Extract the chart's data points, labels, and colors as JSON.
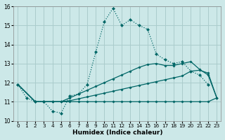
{
  "xlabel": "Humidex (Indice chaleur)",
  "background_color": "#cce8e8",
  "grid_color": "#aacccc",
  "line_color": "#006666",
  "xlim": [
    -0.5,
    23.5
  ],
  "ylim": [
    10,
    16
  ],
  "xticks": [
    0,
    1,
    2,
    3,
    4,
    5,
    6,
    7,
    8,
    9,
    10,
    11,
    12,
    13,
    14,
    15,
    16,
    17,
    18,
    19,
    20,
    21,
    22,
    23
  ],
  "yticks": [
    10,
    11,
    12,
    13,
    14,
    15,
    16
  ],
  "dotted_x": [
    0,
    1,
    2,
    3,
    4,
    5,
    6,
    7,
    8,
    9,
    10,
    11,
    12,
    13,
    14,
    15,
    16,
    17,
    18,
    19,
    20,
    21,
    22
  ],
  "dotted_y": [
    11.9,
    11.2,
    11.0,
    11.0,
    10.5,
    10.4,
    11.3,
    11.4,
    11.9,
    13.6,
    15.2,
    15.9,
    15.0,
    15.3,
    15.0,
    14.8,
    13.5,
    13.2,
    13.0,
    13.1,
    12.6,
    12.4,
    11.9
  ],
  "flat_x": [
    0,
    2,
    3,
    4,
    5,
    6,
    7,
    8,
    9,
    10,
    11,
    12,
    13,
    14,
    15,
    16,
    17,
    18,
    19,
    20,
    21,
    22,
    23
  ],
  "flat_y": [
    11.9,
    11.0,
    11.0,
    11.0,
    11.0,
    11.0,
    11.0,
    11.0,
    11.0,
    11.0,
    11.0,
    11.0,
    11.0,
    11.0,
    11.0,
    11.0,
    11.0,
    11.0,
    11.0,
    11.0,
    11.0,
    11.0,
    11.2
  ],
  "mid_x": [
    0,
    2,
    3,
    4,
    5,
    6,
    7,
    8,
    9,
    10,
    11,
    12,
    13,
    14,
    15,
    16,
    17,
    18,
    19,
    20,
    21,
    22,
    23
  ],
  "mid_y": [
    11.9,
    11.0,
    11.0,
    11.0,
    11.0,
    11.05,
    11.15,
    11.25,
    11.35,
    11.45,
    11.55,
    11.65,
    11.75,
    11.85,
    11.95,
    12.05,
    12.15,
    12.25,
    12.35,
    12.6,
    12.65,
    12.5,
    11.2
  ],
  "high_x": [
    0,
    2,
    3,
    4,
    5,
    6,
    7,
    8,
    9,
    10,
    11,
    12,
    13,
    14,
    15,
    16,
    17,
    18,
    19,
    20,
    21,
    22,
    23
  ],
  "high_y": [
    11.9,
    11.0,
    11.0,
    11.0,
    11.0,
    11.2,
    11.4,
    11.6,
    11.8,
    12.0,
    12.2,
    12.4,
    12.6,
    12.8,
    12.95,
    13.0,
    12.9,
    12.9,
    13.0,
    13.1,
    12.7,
    12.4,
    11.2
  ]
}
